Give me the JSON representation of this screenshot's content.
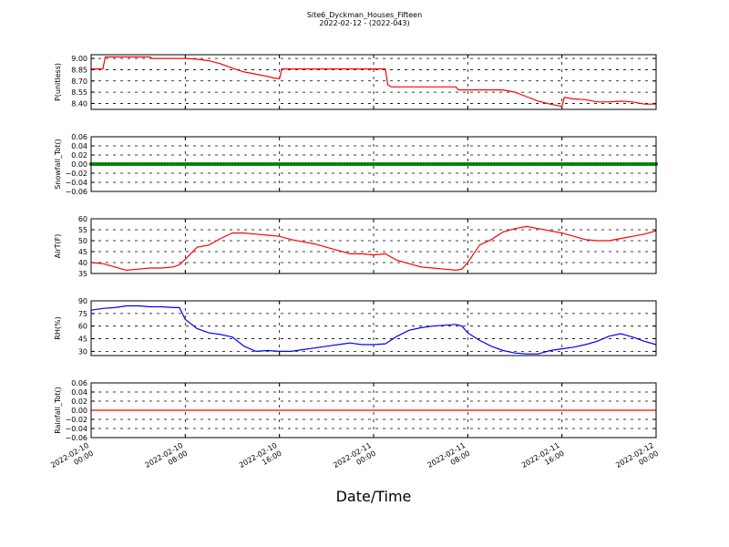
{
  "title_line1": "Site6_Dyckman_Houses_Fifteen",
  "title_line2": "2022-02-12 - (2022-043)",
  "xlabel": "Date/Time",
  "x_ticks": [
    {
      "l1": "2022-02-10",
      "l2": "00:00",
      "h": 0
    },
    {
      "l1": "2022-02-10",
      "l2": "08:00",
      "h": 8
    },
    {
      "l1": "2022-02-10",
      "l2": "16:00",
      "h": 16
    },
    {
      "l1": "2022-02-11",
      "l2": "00:00",
      "h": 24
    },
    {
      "l1": "2022-02-11",
      "l2": "08:00",
      "h": 32
    },
    {
      "l1": "2022-02-11",
      "l2": "16:00",
      "h": 40
    },
    {
      "l1": "2022-02-12",
      "l2": "00:00",
      "h": 48
    }
  ],
  "chart_data": [
    {
      "type": "line",
      "ylabel": "P(unitless)",
      "ylim": [
        8.32,
        9.05
      ],
      "yticks": [
        "9.00",
        "8.85",
        "8.70",
        "8.55",
        "8.40"
      ],
      "ytick_values": [
        9.0,
        8.85,
        8.7,
        8.55,
        8.4
      ],
      "grid": true,
      "color": "#ff0000",
      "x": [
        0,
        1,
        1.2,
        2,
        4,
        5,
        5.2,
        6,
        8,
        9,
        10,
        11,
        12,
        13,
        14,
        15,
        15.5,
        16,
        16.2,
        18,
        20,
        22,
        24,
        25,
        25.2,
        25.5,
        28,
        29,
        30,
        31,
        31.2,
        34,
        35,
        36,
        37,
        38,
        39,
        40,
        40.2,
        41,
        42,
        43,
        44,
        45,
        46,
        47,
        48
      ],
      "y": [
        8.86,
        8.86,
        9.02,
        9.02,
        9.02,
        9.02,
        9.0,
        9.0,
        9.0,
        8.99,
        8.97,
        8.93,
        8.87,
        8.82,
        8.79,
        8.76,
        8.74,
        8.73,
        8.86,
        8.86,
        8.86,
        8.86,
        8.86,
        8.86,
        8.65,
        8.62,
        8.62,
        8.62,
        8.62,
        8.62,
        8.58,
        8.58,
        8.58,
        8.55,
        8.49,
        8.43,
        8.39,
        8.36,
        8.48,
        8.46,
        8.45,
        8.42,
        8.42,
        8.43,
        8.42,
        8.39,
        8.39
      ]
    },
    {
      "type": "line",
      "ylabel": "Snowfall_Tot()",
      "ylim": [
        -0.06,
        0.06
      ],
      "yticks": [
        "0.06",
        "0.04",
        "0.02",
        "0.00",
        "−0.02",
        "−0.04",
        "−0.06"
      ],
      "ytick_values": [
        0.06,
        0.04,
        0.02,
        0.0,
        -0.02,
        -0.04,
        -0.06
      ],
      "grid": true,
      "color": "#008000",
      "markers": true,
      "x": [
        0,
        48
      ],
      "y": [
        0,
        0
      ]
    },
    {
      "type": "line",
      "ylabel": "AirT(F)",
      "ylim": [
        35,
        60
      ],
      "yticks": [
        "60",
        "55",
        "50",
        "45",
        "40",
        "35"
      ],
      "ytick_values": [
        60,
        55,
        50,
        45,
        40,
        35
      ],
      "grid": true,
      "color": "#ff0000",
      "x": [
        0,
        1,
        2,
        3,
        4,
        5,
        6,
        7,
        7.5,
        8,
        9,
        10,
        11,
        12,
        13,
        14,
        15,
        16,
        17,
        18,
        19,
        20,
        21,
        22,
        23,
        24,
        25,
        26,
        27,
        28,
        29,
        30,
        31,
        31.5,
        32,
        33,
        34,
        35,
        36,
        37,
        38,
        39,
        40,
        41,
        42,
        43,
        44,
        45,
        46,
        47,
        48
      ],
      "y": [
        40,
        39.5,
        38,
        36.5,
        37,
        37.5,
        37.5,
        38,
        39,
        41.5,
        47,
        48,
        51,
        53.5,
        53.5,
        53,
        52.5,
        52,
        50.5,
        49.5,
        48.5,
        47,
        45.5,
        44,
        44,
        43.5,
        44,
        41,
        39.5,
        38,
        37.5,
        37,
        36.5,
        37,
        40,
        48,
        50.5,
        54,
        55.5,
        56.5,
        55.5,
        54.5,
        53.5,
        52,
        50.5,
        50,
        50,
        51,
        52,
        53,
        54.5
      ]
    },
    {
      "type": "line",
      "ylabel": "RH(%)",
      "ylim": [
        25,
        90
      ],
      "yticks": [
        "90",
        "75",
        "60",
        "45",
        "30"
      ],
      "ytick_values": [
        90,
        75,
        60,
        45,
        30
      ],
      "grid": true,
      "color": "#0000ff",
      "x": [
        0,
        1,
        2,
        3,
        4,
        5,
        6,
        7,
        7.5,
        8,
        9,
        10,
        11,
        12,
        13,
        13.5,
        14,
        15,
        16,
        17,
        18,
        19,
        20,
        21,
        22,
        23,
        24,
        25,
        26,
        27,
        28,
        29,
        30,
        31,
        31.5,
        32,
        33,
        34,
        35,
        36,
        37,
        38,
        39,
        40,
        41,
        42,
        43,
        44,
        45,
        46,
        47,
        48
      ],
      "y": [
        79,
        81,
        82,
        84,
        84,
        83,
        83,
        82,
        82,
        68,
        57,
        52,
        50,
        47,
        36,
        33,
        30,
        31,
        30,
        30,
        32,
        34,
        36,
        38,
        40,
        38,
        38,
        39,
        48,
        55,
        58,
        60,
        61,
        62,
        60,
        52,
        43,
        36,
        31,
        28,
        27,
        27,
        31,
        33,
        35,
        38,
        42,
        48,
        51,
        47,
        42,
        38
      ]
    },
    {
      "type": "line",
      "ylabel": "Rainfall_Tot()",
      "ylim": [
        -0.06,
        0.06
      ],
      "yticks": [
        "0.06",
        "0.04",
        "0.02",
        "0.00",
        "−0.02",
        "−0.04",
        "−0.06"
      ],
      "ytick_values": [
        0.06,
        0.04,
        0.02,
        0.0,
        -0.02,
        -0.04,
        -0.06
      ],
      "grid": true,
      "color": "#ff0000",
      "x": [
        0,
        48
      ],
      "y": [
        0,
        0
      ]
    }
  ]
}
